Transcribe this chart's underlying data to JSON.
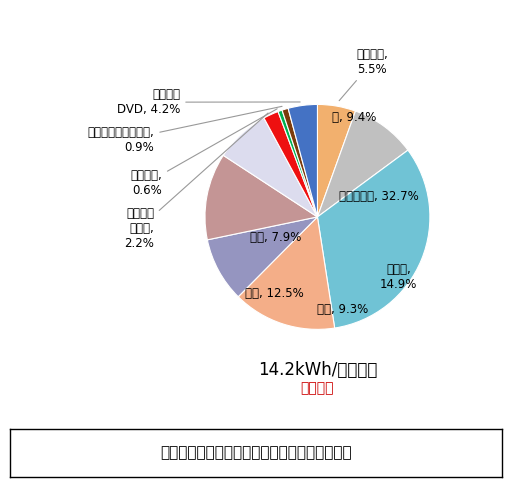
{
  "ordered_labels": [
    "待機電力",
    "他",
    "エアコン等",
    "冷蔵庫",
    "照明",
    "給湯",
    "炊事",
    "洗濯機・\n乾燥機",
    "温水便座",
    "パソコン・ルーター",
    "テレビ・\nDVD"
  ],
  "ordered_values": [
    5.5,
    9.4,
    32.7,
    14.9,
    9.3,
    12.5,
    7.9,
    2.2,
    0.6,
    0.9,
    4.2
  ],
  "ordered_colors": [
    "#F4B183",
    "#BFBFBF",
    "#70C4D8",
    "#F4B183",
    "#9999C4",
    "#C09090",
    "#DCDCF0",
    "#FF0000",
    "#00B050",
    "#843C0C",
    "#4472C4"
  ],
  "center_line1": "14.2kWh/世帯・日",
  "center_line2": "（冬季）",
  "title": "家庭における家電製品の一日での電力消費割合"
}
